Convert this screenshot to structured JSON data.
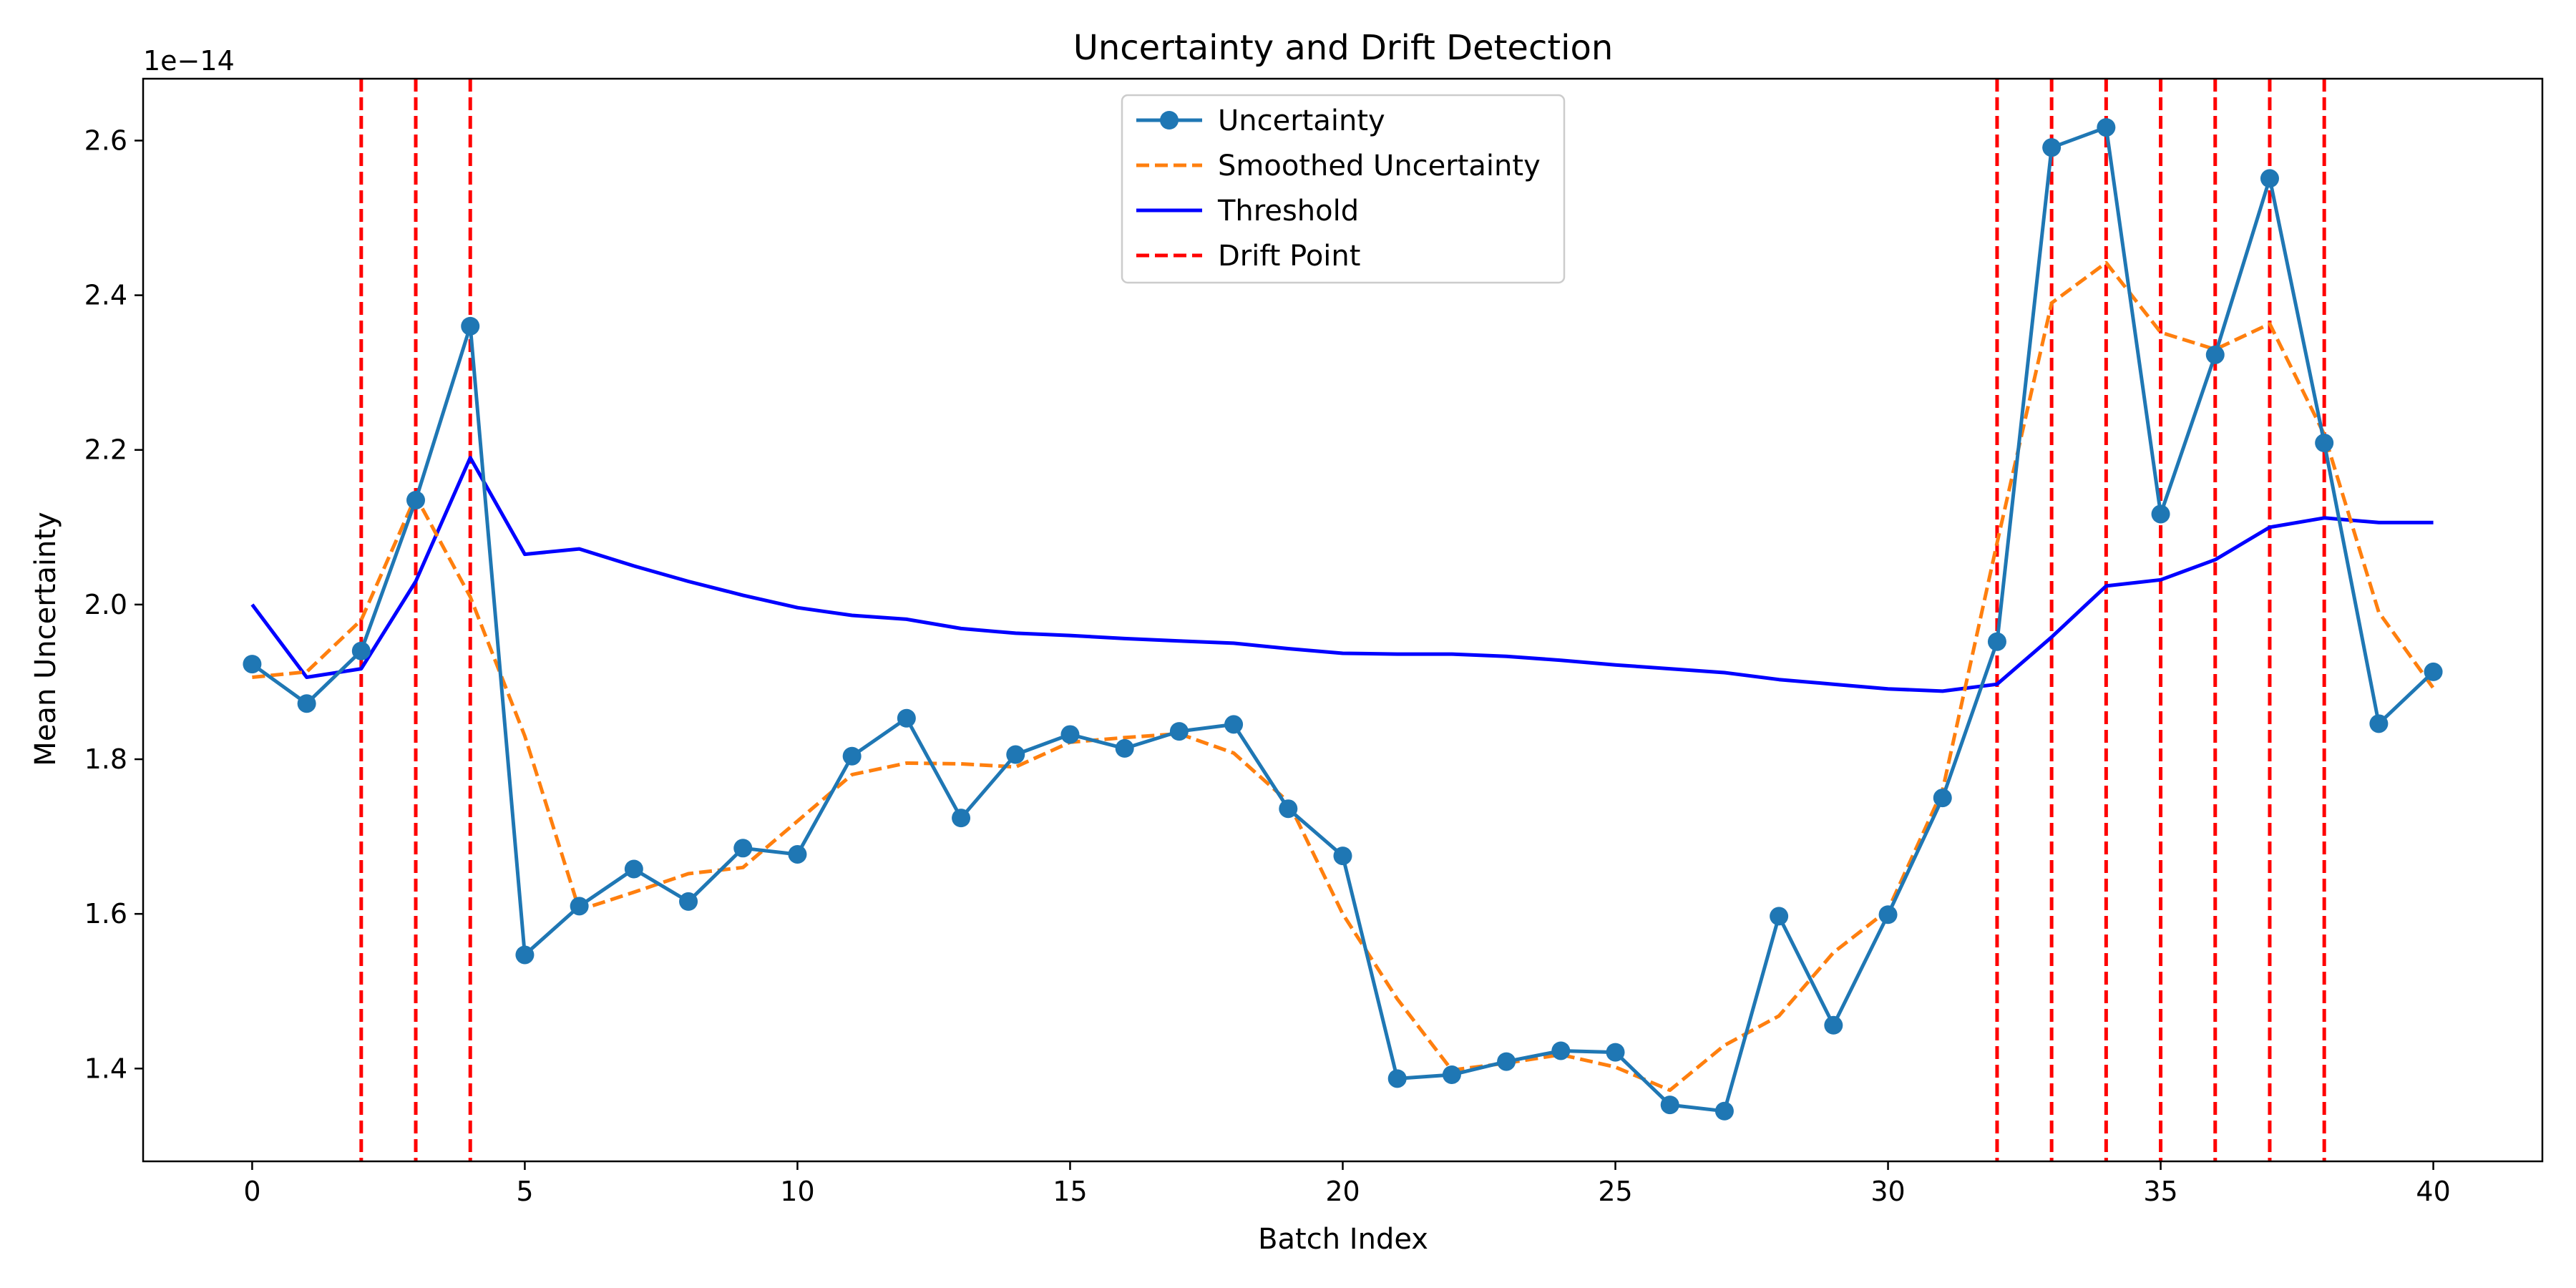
{
  "chart_data": {
    "type": "line",
    "title": "Uncertainty and Drift Detection",
    "xlabel": "Batch Index",
    "ylabel": "Mean Uncertainty",
    "y_offset_label": "1e−14",
    "xlim": [
      -2,
      42
    ],
    "ylim": [
      1.28,
      2.68
    ],
    "x_ticks": [
      0,
      5,
      10,
      15,
      20,
      25,
      30,
      35,
      40
    ],
    "x_tick_labels": [
      "0",
      "5",
      "10",
      "15",
      "20",
      "25",
      "30",
      "35",
      "40"
    ],
    "y_ticks": [
      1.4,
      1.6,
      1.8,
      2.0,
      2.2,
      2.4,
      2.6
    ],
    "y_tick_labels": [
      "1.4",
      "1.6",
      "1.8",
      "2.0",
      "2.2",
      "2.4",
      "2.6"
    ],
    "grid": false,
    "legend_position": "top-center",
    "x": [
      0,
      1,
      2,
      3,
      4,
      5,
      6,
      7,
      8,
      9,
      10,
      11,
      12,
      13,
      14,
      15,
      16,
      17,
      18,
      19,
      20,
      21,
      22,
      23,
      24,
      25,
      26,
      27,
      28,
      29,
      30,
      31,
      32,
      33,
      34,
      35,
      36,
      37,
      38,
      39,
      40
    ],
    "series": [
      {
        "name": "Uncertainty",
        "color": "#1f77b4",
        "style": "solid-with-markers",
        "values": [
          1.923,
          1.872,
          1.94,
          2.135,
          2.36,
          1.547,
          1.61,
          1.658,
          1.616,
          1.685,
          1.677,
          1.804,
          1.853,
          1.724,
          1.806,
          1.832,
          1.814,
          1.836,
          1.845,
          1.736,
          1.675,
          1.387,
          1.392,
          1.409,
          1.423,
          1.421,
          1.353,
          1.345,
          1.597,
          1.456,
          1.599,
          1.75,
          1.952,
          2.591,
          2.617,
          2.117,
          2.323,
          2.551,
          2.209,
          1.846,
          1.913
        ]
      },
      {
        "name": "Smoothed Uncertainty",
        "color": "#ff7f0e",
        "style": "dashed",
        "values": [
          1.906,
          1.913,
          1.98,
          2.14,
          2.01,
          1.83,
          1.605,
          1.628,
          1.652,
          1.66,
          1.72,
          1.78,
          1.795,
          1.794,
          1.79,
          1.822,
          1.828,
          1.833,
          1.808,
          1.745,
          1.6,
          1.49,
          1.398,
          1.407,
          1.418,
          1.402,
          1.372,
          1.43,
          1.468,
          1.55,
          1.605,
          1.76,
          2.08,
          2.39,
          2.442,
          2.352,
          2.33,
          2.363,
          2.22,
          1.99,
          1.892
        ]
      },
      {
        "name": "Threshold",
        "color": "#0000ff",
        "style": "solid",
        "values": [
          2.0,
          1.906,
          1.917,
          2.03,
          2.19,
          2.065,
          2.072,
          2.05,
          2.03,
          2.012,
          1.996,
          1.986,
          1.981,
          1.969,
          1.963,
          1.96,
          1.956,
          1.953,
          1.95,
          1.943,
          1.937,
          1.936,
          1.936,
          1.933,
          1.928,
          1.922,
          1.917,
          1.912,
          1.903,
          1.897,
          1.891,
          1.888,
          1.897,
          1.958,
          2.024,
          2.032,
          2.058,
          2.1,
          2.112,
          2.106,
          2.106
        ]
      }
    ],
    "drift_points": {
      "name": "Drift Point",
      "color": "#ff0000",
      "style": "dashed-vertical",
      "x": [
        2,
        3,
        4,
        32,
        33,
        34,
        35,
        36,
        37,
        38
      ]
    }
  }
}
